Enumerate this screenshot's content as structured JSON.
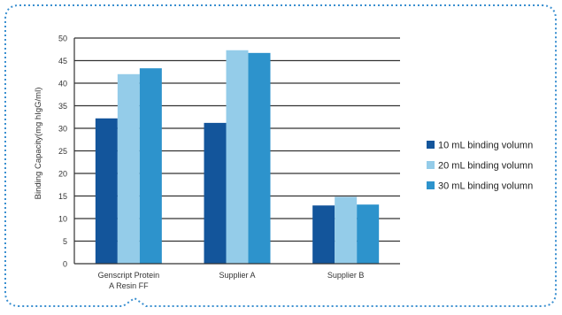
{
  "chart_data": {
    "type": "bar",
    "title": "",
    "xlabel": "",
    "ylabel": "Binding Capacity(mg  hIgG/ml)",
    "ylim": [
      0,
      50
    ],
    "yticks": [
      0,
      5,
      10,
      15,
      20,
      25,
      30,
      35,
      40,
      45,
      50
    ],
    "grid": true,
    "legend_position": "right",
    "categories": [
      [
        "Genscript Protein",
        "A Resin FF"
      ],
      [
        "Supplier A"
      ],
      [
        "Supplier B"
      ]
    ],
    "series": [
      {
        "name": "10 mL binding volumn",
        "color": "#13559b",
        "values": [
          32.2,
          31.2,
          12.9
        ]
      },
      {
        "name": "20 mL binding volumn",
        "color": "#94cce9",
        "values": [
          42.0,
          47.3,
          14.8
        ]
      },
      {
        "name": "30 mL binding volumn",
        "color": "#2d93cc",
        "values": [
          43.3,
          46.7,
          13.1
        ]
      }
    ],
    "frame": {
      "style": "dotted",
      "color": "#3a8fd0"
    }
  }
}
